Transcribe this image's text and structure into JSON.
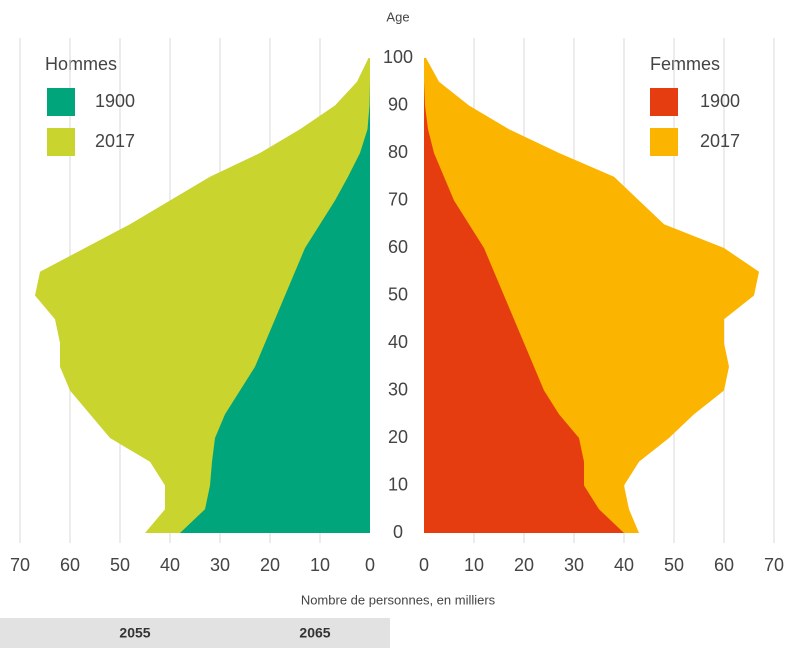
{
  "chart_data": {
    "type": "pyramid",
    "y_label": "Age",
    "x_label": "Nombre de personnes, en milliers",
    "legend_titles": {
      "left": "Hommes",
      "right": "Femmes"
    },
    "ages": [
      0,
      5,
      10,
      15,
      20,
      25,
      30,
      35,
      40,
      45,
      50,
      55,
      60,
      65,
      70,
      75,
      80,
      85,
      90,
      95,
      100
    ],
    "series": [
      {
        "name": "2017",
        "side": "left",
        "color": "#c9d42e",
        "values": [
          45,
          41,
          41,
          44,
          52,
          56,
          60,
          62,
          62,
          63,
          67,
          66,
          57,
          48,
          40,
          32,
          22,
          14,
          7,
          2.6,
          0.3
        ]
      },
      {
        "name": "1900",
        "side": "left",
        "color": "#00a57c",
        "values": [
          38,
          33,
          32,
          31.6,
          31,
          29,
          26,
          23,
          21,
          19,
          17,
          15,
          13,
          10,
          7,
          4.4,
          2,
          0.5,
          0.1,
          0,
          0
        ]
      },
      {
        "name": "2017",
        "side": "right",
        "color": "#fbb400",
        "values": [
          43,
          41,
          40,
          43,
          49,
          54,
          60,
          61,
          60,
          60,
          66,
          67,
          60,
          48,
          43,
          38,
          27,
          17,
          9,
          3,
          0.4
        ]
      },
      {
        "name": "1900",
        "side": "right",
        "color": "#e53d0f",
        "values": [
          40,
          35,
          32,
          32,
          31,
          27,
          24,
          22,
          20,
          18,
          16,
          14,
          12,
          9,
          6,
          4,
          2,
          0.8,
          0.2,
          0,
          0
        ]
      }
    ],
    "xlim": [
      0,
      70
    ],
    "xticks": [
      0,
      10,
      20,
      30,
      40,
      50,
      60,
      70
    ],
    "ylim": [
      0,
      100
    ],
    "yticks": [
      0,
      10,
      20,
      30,
      40,
      50,
      60,
      70,
      80,
      90,
      100
    ],
    "grid": true
  },
  "footer": {
    "labels": [
      "2055",
      "2065"
    ]
  }
}
